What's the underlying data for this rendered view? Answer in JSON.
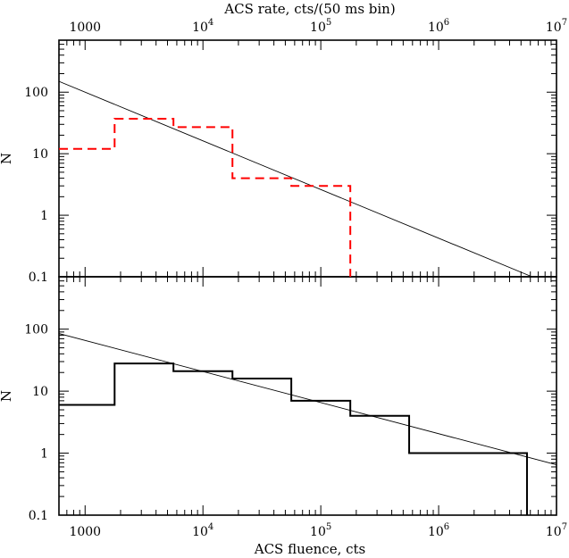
{
  "chart_data": [
    {
      "id": "top",
      "type": "step",
      "title": "",
      "top_axis_label": "ACS rate, cts/(50 ms bin)",
      "top_axis_ticks": [
        {
          "value": 1000,
          "base": "1000",
          "exp": ""
        },
        {
          "value": 10000,
          "base": "10",
          "exp": "4"
        },
        {
          "value": 100000,
          "base": "10",
          "exp": "5"
        },
        {
          "value": 1000000,
          "base": "10",
          "exp": "6"
        },
        {
          "value": 10000000,
          "base": "10",
          "exp": "7"
        }
      ],
      "ylabel": "N",
      "y_scale": "log",
      "y_ticks": [
        {
          "value": 0.1,
          "label": "0.1"
        },
        {
          "value": 1,
          "label": "1"
        },
        {
          "value": 10,
          "label": "10"
        },
        {
          "value": 100,
          "label": "100"
        }
      ],
      "ylim": [
        0.1,
        700
      ],
      "x_scale": "log",
      "xlim": [
        600,
        10000000
      ],
      "series": [
        {
          "style": "dashed",
          "color": "#ff0000",
          "edges": [
            600,
            1780,
            5620,
            17800,
            56200,
            178000
          ],
          "values": [
            12,
            37,
            27,
            4,
            3
          ]
        }
      ],
      "fit_line": {
        "from": [
          600,
          150
        ],
        "to": [
          6200000,
          0.1
        ]
      }
    },
    {
      "id": "bottom",
      "type": "step",
      "title": "",
      "xlabel": "ACS fluence, cts",
      "x_ticks": [
        {
          "value": 1000,
          "base": "1000",
          "exp": ""
        },
        {
          "value": 10000,
          "base": "10",
          "exp": "4"
        },
        {
          "value": 100000,
          "base": "10",
          "exp": "5"
        },
        {
          "value": 1000000,
          "base": "10",
          "exp": "6"
        },
        {
          "value": 10000000,
          "base": "10",
          "exp": "7"
        }
      ],
      "ylabel": "N",
      "y_scale": "log",
      "y_ticks": [
        {
          "value": 0.1,
          "label": "0.1"
        },
        {
          "value": 1,
          "label": "1"
        },
        {
          "value": 10,
          "label": "10"
        },
        {
          "value": 100,
          "label": "100"
        }
      ],
      "ylim": [
        0.1,
        700
      ],
      "x_scale": "log",
      "xlim": [
        600,
        10000000
      ],
      "series": [
        {
          "style": "solid",
          "color": "#000000",
          "edges": [
            600,
            1780,
            5620,
            17800,
            56200,
            178000,
            562000,
            5620000
          ],
          "values": [
            6,
            28,
            21,
            16,
            7,
            4,
            1
          ]
        }
      ],
      "fit_line": {
        "from": [
          600,
          85
        ],
        "to": [
          10000000,
          0.65
        ]
      }
    }
  ]
}
